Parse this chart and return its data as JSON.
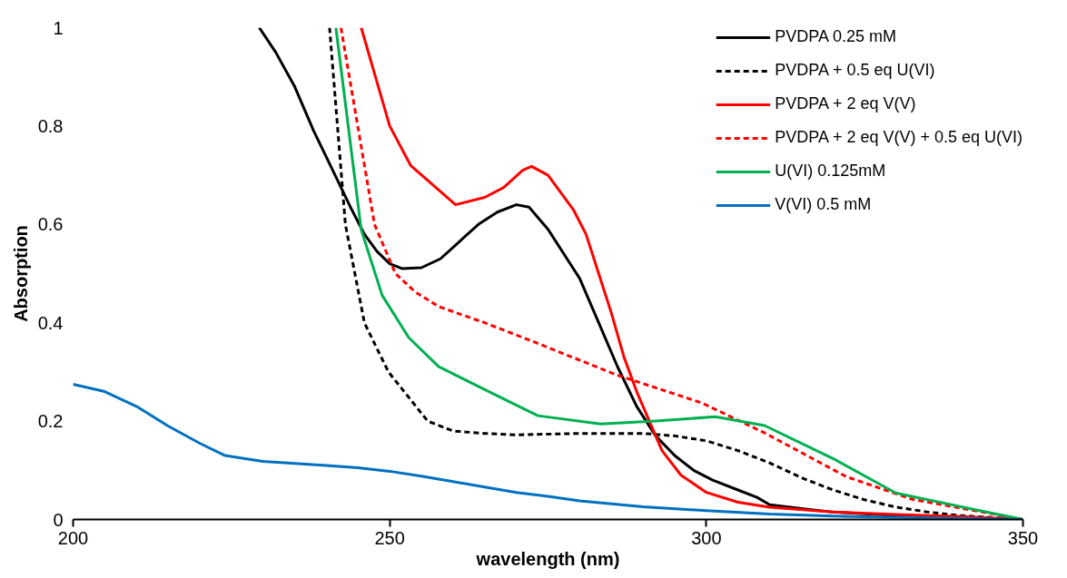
{
  "chart_data": {
    "type": "line",
    "xlabel": "wavelength (nm)",
    "ylabel": "Absorption",
    "xlim": [
      200,
      350
    ],
    "xticks": [
      200,
      250,
      300,
      350
    ],
    "ylim": [
      0,
      1
    ],
    "yticks": [
      0,
      0.2,
      0.4,
      0.6,
      0.8,
      1
    ],
    "grid": false,
    "legend": "top right",
    "marker": "none",
    "series": [
      {
        "name": "PVDPA 0.25 mM",
        "color": "#000000",
        "line_style": "solid",
        "x": [
          229.4,
          232,
          235,
          238,
          241,
          244,
          246,
          248,
          250,
          252,
          255,
          258,
          261,
          264,
          267,
          270,
          272,
          275,
          278,
          280,
          283,
          286,
          289,
          292,
          295,
          298,
          301,
          305,
          308,
          310,
          315,
          320,
          330,
          340,
          350
        ],
        "values": [
          1,
          0.95,
          0.88,
          0.79,
          0.71,
          0.63,
          0.58,
          0.545,
          0.52,
          0.51,
          0.512,
          0.53,
          0.565,
          0.6,
          0.625,
          0.64,
          0.635,
          0.59,
          0.53,
          0.49,
          0.4,
          0.31,
          0.23,
          0.17,
          0.13,
          0.1,
          0.08,
          0.06,
          0.045,
          0.03,
          0.022,
          0.015,
          0.008,
          0.004,
          0
        ]
      },
      {
        "name": "PVDPA + 0.5 eq U(VI)",
        "color": "#000000",
        "line_style": "dashed",
        "x": [
          240.5,
          243,
          246,
          249.8,
          256,
          260,
          265,
          270,
          280,
          290,
          295,
          300,
          305,
          310,
          315,
          320,
          325,
          330,
          335,
          340,
          345,
          350
        ],
        "values": [
          1,
          0.6,
          0.4,
          0.3,
          0.2,
          0.18,
          0.175,
          0.172,
          0.175,
          0.175,
          0.17,
          0.16,
          0.14,
          0.115,
          0.085,
          0.06,
          0.04,
          0.025,
          0.015,
          0.008,
          0.004,
          0
        ]
      },
      {
        "name": "PVDPA + 2 eq V(V)",
        "color": "#ff0000",
        "line_style": "solid",
        "x": [
          245.5,
          250,
          253.3,
          260.4,
          265,
          268,
          271,
          272.4,
          275,
          277,
          279,
          281,
          283,
          285,
          287,
          289,
          291,
          293,
          296,
          300,
          305,
          310,
          320,
          330,
          340,
          350
        ],
        "values": [
          1,
          0.8,
          0.72,
          0.64,
          0.655,
          0.675,
          0.71,
          0.718,
          0.7,
          0.665,
          0.63,
          0.58,
          0.5,
          0.42,
          0.33,
          0.26,
          0.2,
          0.14,
          0.09,
          0.055,
          0.035,
          0.025,
          0.015,
          0.01,
          0.006,
          0
        ]
      },
      {
        "name": "PVDPA + 2 eq V(V) + 0.5 eq U(VI)",
        "color": "#ff0000",
        "line_style": "dashed",
        "x": [
          242.3,
          247.6,
          250.9,
          254,
          257.7,
          265,
          273,
          285.8,
          299.3,
          309.2,
          322.1,
          332.5,
          342.8,
          350
        ],
        "values": [
          1,
          0.6,
          0.5,
          0.463,
          0.433,
          0.4,
          0.36,
          0.294,
          0.237,
          0.176,
          0.087,
          0.041,
          0.017,
          0
        ]
      },
      {
        "name": "U(VI) 0.125mM",
        "color": "#00b050",
        "line_style": "solid",
        "x": [
          241.5,
          245.5,
          248.8,
          253,
          257.7,
          266.9,
          273.4,
          283.3,
          292,
          301.4,
          309.2,
          320,
          329.9,
          342.8,
          350
        ],
        "values": [
          1,
          0.589,
          0.456,
          0.37,
          0.311,
          0.252,
          0.211,
          0.194,
          0.2,
          0.209,
          0.191,
          0.124,
          0.054,
          0.019,
          0
        ]
      },
      {
        "name": "V(VI) 0.5 mM",
        "color": "#0070c0",
        "line_style": "solid",
        "x": [
          200,
          205,
          210,
          215,
          220,
          224,
          230,
          240,
          245,
          250,
          255,
          260,
          265,
          270,
          275,
          280,
          290,
          300,
          310,
          320,
          330,
          350
        ],
        "values": [
          0.275,
          0.26,
          0.23,
          0.19,
          0.155,
          0.13,
          0.118,
          0.11,
          0.105,
          0.098,
          0.088,
          0.077,
          0.066,
          0.055,
          0.047,
          0.038,
          0.026,
          0.018,
          0.011,
          0.007,
          0.004,
          0
        ]
      }
    ]
  }
}
